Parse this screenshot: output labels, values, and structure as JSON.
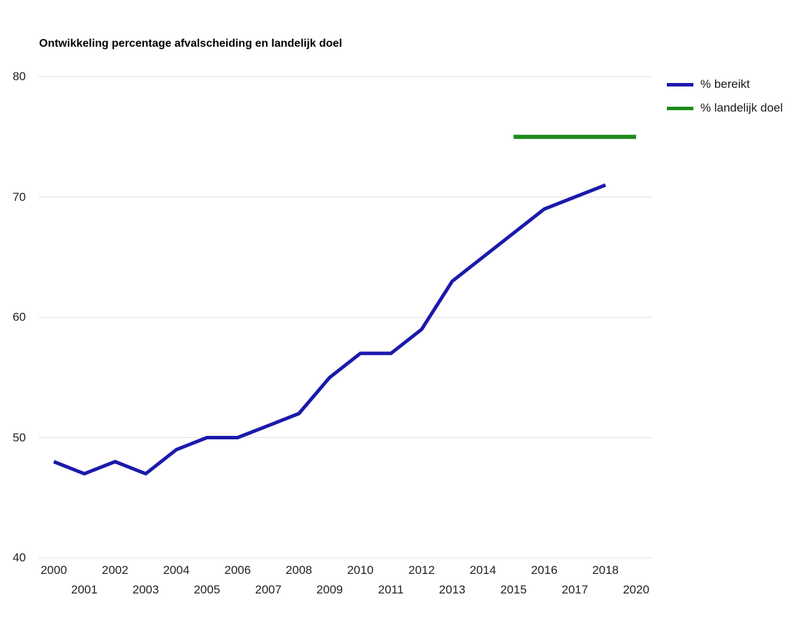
{
  "title": "Ontwikkeling percentage afvalscheiding en landelijk doel",
  "colors": {
    "series_blue": "#1b1aab",
    "series_green": "#1e8b1e",
    "gridline": "#e0e0e0",
    "axis_text": "#1f1f1f",
    "title_text": "#000000",
    "background": "#ffffff"
  },
  "legend": {
    "items": [
      {
        "label": "% bereikt",
        "color": "#1b1aab"
      },
      {
        "label": "% landelijk doel",
        "color": "#1e8b1e"
      }
    ]
  },
  "chart_data": {
    "type": "line",
    "title": "Ontwikkeling percentage afvalscheiding en landelijk doel",
    "xlabel": "",
    "ylabel": "",
    "ylim": [
      40,
      80
    ],
    "yticks": [
      40,
      50,
      60,
      70,
      80
    ],
    "x_domain": [
      2000,
      2019
    ],
    "grid": true,
    "legend_position": "top-right",
    "series": [
      {
        "name": "% bereikt",
        "color": "#1b1aab",
        "x": [
          2000,
          2001,
          2002,
          2003,
          2004,
          2005,
          2006,
          2007,
          2008,
          2009,
          2010,
          2011,
          2012,
          2013,
          2014,
          2015,
          2016,
          2017,
          2018
        ],
        "values": [
          48,
          47,
          48,
          47,
          49,
          50,
          50,
          51,
          52,
          55,
          57,
          57,
          59,
          63,
          65,
          67,
          69,
          70,
          71
        ]
      },
      {
        "name": "% landelijk doel",
        "color": "#1e8b1e",
        "x": [
          2015,
          2019
        ],
        "values": [
          75,
          75
        ]
      }
    ],
    "xticks": [
      {
        "year": 2000,
        "label": "2000",
        "row": "top"
      },
      {
        "year": 2001,
        "label": "2001",
        "row": "bottom"
      },
      {
        "year": 2002,
        "label": "2002",
        "row": "top"
      },
      {
        "year": 2003,
        "label": "2003",
        "row": "bottom"
      },
      {
        "year": 2004,
        "label": "2004",
        "row": "top"
      },
      {
        "year": 2005,
        "label": "2005",
        "row": "bottom"
      },
      {
        "year": 2006,
        "label": "2006",
        "row": "top"
      },
      {
        "year": 2007,
        "label": "2007",
        "row": "bottom"
      },
      {
        "year": 2008,
        "label": "2008",
        "row": "top"
      },
      {
        "year": 2009,
        "label": "2009",
        "row": "bottom"
      },
      {
        "year": 2010,
        "label": "2010",
        "row": "top"
      },
      {
        "year": 2011,
        "label": "2011",
        "row": "bottom"
      },
      {
        "year": 2012,
        "label": "2012",
        "row": "top"
      },
      {
        "year": 2013,
        "label": "2013",
        "row": "bottom"
      },
      {
        "year": 2014,
        "label": "2014",
        "row": "top"
      },
      {
        "year": 2015,
        "label": "2015",
        "row": "bottom"
      },
      {
        "year": 2016,
        "label": "2016",
        "row": "top"
      },
      {
        "year": 2017,
        "label": "2017",
        "row": "bottom"
      },
      {
        "year": 2018,
        "label": "2018",
        "row": "top"
      },
      {
        "year": 2019,
        "label": "2020",
        "row": "bottom"
      }
    ]
  }
}
